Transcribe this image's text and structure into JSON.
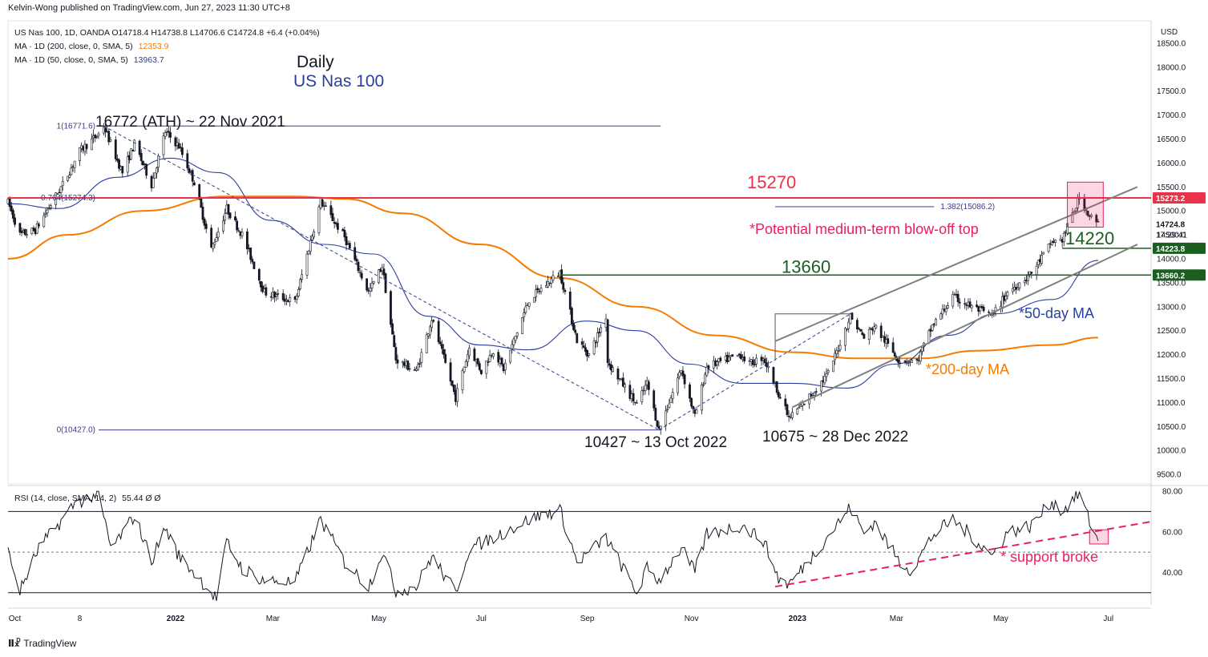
{
  "header": {
    "published": "Kelvin-Wong published on TradingView.com, Jun 27, 2023 11:30 UTC+8"
  },
  "legend": {
    "symbol": "US Nas 100, 1D, OANDA  O14718.4  H14738.8  L14706.6  C14724.8  +6.4 (+0.04%)",
    "ma200_label": "MA · 1D (200, close, 0, SMA, 5)",
    "ma200_value": "12353.9",
    "ma50_label": "MA · 1D (50, close, 0, SMA, 5)",
    "ma50_value": "13963.7",
    "rsi_label": "RSI (14, close, SMA, 14, 2)",
    "rsi_value": "55.44  Ø  Ø"
  },
  "footer": {
    "brand": "TradingView",
    "logo": "tradingview-logo-icon"
  },
  "colors": {
    "up": "#131722",
    "ma200": "#f57c00",
    "ma50": "#2a3f9d",
    "resistance": "#e8334a",
    "support": "#1b5e20",
    "annotation_red": "#e91e63",
    "fib": "#3b3b8f",
    "channel": "#808080"
  },
  "chart_data": [
    {
      "type": "candlestick",
      "title": "Daily",
      "subtitle": "US Nas 100",
      "price_axis_label": "USD",
      "ylim": [
        9300,
        18900
      ],
      "y_ticks": [
        9500,
        10000,
        10500,
        11000,
        11500,
        12000,
        12500,
        13000,
        13500,
        14000,
        14500,
        15000,
        15500,
        16000,
        16500,
        17000,
        17500,
        18000,
        18500
      ],
      "y_tick_labels": [
        "9500.0",
        "10000.0",
        "10500.0",
        "11000.0",
        "11500.0",
        "12000.0",
        "12500.0",
        "13000.0",
        "13500.0",
        "14000.0",
        "14500.0",
        "15000.0",
        "15500.0",
        "16000.0",
        "16500.0",
        "17000.0",
        "17500.0",
        "18000.0",
        "18500.0"
      ],
      "x_ticks": [
        {
          "date": "2021-10-01",
          "label": "Oct",
          "bold": false
        },
        {
          "date": "2021-11-08",
          "label": "8",
          "bold": false
        },
        {
          "date": "2022-01-03",
          "label": "2022",
          "bold": true
        },
        {
          "date": "2022-03-01",
          "label": "Mar",
          "bold": false
        },
        {
          "date": "2022-05-02",
          "label": "May",
          "bold": false
        },
        {
          "date": "2022-07-01",
          "label": "Jul",
          "bold": false
        },
        {
          "date": "2022-09-01",
          "label": "Sep",
          "bold": false
        },
        {
          "date": "2022-11-01",
          "label": "Nov",
          "bold": false
        },
        {
          "date": "2023-01-02",
          "label": "2023",
          "bold": true
        },
        {
          "date": "2023-03-01",
          "label": "Mar",
          "bold": false
        },
        {
          "date": "2023-05-01",
          "label": "May",
          "bold": false
        },
        {
          "date": "2023-07-03",
          "label": "Jul",
          "bold": false
        }
      ],
      "price_pivots": [
        [
          "2021-09-27",
          15180
        ],
        [
          "2021-10-04",
          14500
        ],
        [
          "2021-10-13",
          14600
        ],
        [
          "2021-10-29",
          15550
        ],
        [
          "2021-11-08",
          16250
        ],
        [
          "2021-11-19",
          16600
        ],
        [
          "2021-11-22",
          16772
        ],
        [
          "2021-11-30",
          16050
        ],
        [
          "2021-12-03",
          15800
        ],
        [
          "2021-12-10",
          16400
        ],
        [
          "2021-12-20",
          15550
        ],
        [
          "2021-12-28",
          16650
        ],
        [
          "2022-01-05",
          16350
        ],
        [
          "2022-01-14",
          15600
        ],
        [
          "2022-01-24",
          14200
        ],
        [
          "2022-02-02",
          15050
        ],
        [
          "2022-02-11",
          14500
        ],
        [
          "2022-02-24",
          13300
        ],
        [
          "2022-03-14",
          13100
        ],
        [
          "2022-03-29",
          15200
        ],
        [
          "2022-04-12",
          14450
        ],
        [
          "2022-04-26",
          13300
        ],
        [
          "2022-05-04",
          13850
        ],
        [
          "2022-05-12",
          11900
        ],
        [
          "2022-05-24",
          11650
        ],
        [
          "2022-06-02",
          12750
        ],
        [
          "2022-06-16",
          11100
        ],
        [
          "2022-06-24",
          12150
        ],
        [
          "2022-07-01",
          11650
        ],
        [
          "2022-07-08",
          12100
        ],
        [
          "2022-07-14",
          11700
        ],
        [
          "2022-07-29",
          13150
        ],
        [
          "2022-08-16",
          13720
        ],
        [
          "2022-08-26",
          12300
        ],
        [
          "2022-09-02",
          12000
        ],
        [
          "2022-09-12",
          12800
        ],
        [
          "2022-09-13",
          11850
        ],
        [
          "2022-09-30",
          10950
        ],
        [
          "2022-10-06",
          11400
        ],
        [
          "2022-10-13",
          10427
        ],
        [
          "2022-10-26",
          11700
        ],
        [
          "2022-11-03",
          10700
        ],
        [
          "2022-11-10",
          11750
        ],
        [
          "2022-11-30",
          12000
        ],
        [
          "2022-12-05",
          11800
        ],
        [
          "2022-12-13",
          11950
        ],
        [
          "2022-12-22",
          11200
        ],
        [
          "2022-12-28",
          10675
        ],
        [
          "2023-01-05",
          10950
        ],
        [
          "2023-01-20",
          11600
        ],
        [
          "2023-02-02",
          12800
        ],
        [
          "2023-02-10",
          12350
        ],
        [
          "2023-02-16",
          12600
        ],
        [
          "2023-03-02",
          11900
        ],
        [
          "2023-03-13",
          11850
        ],
        [
          "2023-03-22",
          12600
        ],
        [
          "2023-04-03",
          13200
        ],
        [
          "2023-04-14",
          13000
        ],
        [
          "2023-04-26",
          12800
        ],
        [
          "2023-05-05",
          13300
        ],
        [
          "2023-05-19",
          13700
        ],
        [
          "2023-05-31",
          14350
        ],
        [
          "2023-06-06",
          14400
        ],
        [
          "2023-06-16",
          15273
        ],
        [
          "2023-06-22",
          14900
        ],
        [
          "2023-06-27",
          14724.8
        ]
      ],
      "ma200_points": [
        [
          "2021-09-27",
          14000
        ],
        [
          "2021-11-01",
          14500
        ],
        [
          "2021-12-15",
          15000
        ],
        [
          "2022-01-31",
          15300
        ],
        [
          "2022-03-15",
          15300
        ],
        [
          "2022-04-12",
          15250
        ],
        [
          "2022-05-16",
          14950
        ],
        [
          "2022-06-30",
          14300
        ],
        [
          "2022-08-15",
          13600
        ],
        [
          "2022-09-30",
          13000
        ],
        [
          "2022-11-15",
          12400
        ],
        [
          "2022-12-30",
          12050
        ],
        [
          "2023-02-06",
          11920
        ],
        [
          "2023-03-15",
          11920
        ],
        [
          "2023-04-17",
          12080
        ],
        [
          "2023-05-31",
          12200
        ],
        [
          "2023-06-27",
          12353.9
        ]
      ],
      "ma50_points": [
        [
          "2021-09-27",
          15150
        ],
        [
          "2021-10-27",
          15050
        ],
        [
          "2021-11-30",
          15700
        ],
        [
          "2021-12-31",
          16100
        ],
        [
          "2022-01-28",
          15800
        ],
        [
          "2022-02-28",
          14800
        ],
        [
          "2022-03-31",
          14300
        ],
        [
          "2022-04-29",
          14100
        ],
        [
          "2022-05-31",
          12800
        ],
        [
          "2022-06-30",
          12200
        ],
        [
          "2022-07-29",
          12100
        ],
        [
          "2022-08-31",
          12700
        ],
        [
          "2022-09-30",
          12500
        ],
        [
          "2022-10-31",
          11800
        ],
        [
          "2022-11-30",
          11400
        ],
        [
          "2022-12-30",
          11400
        ],
        [
          "2023-01-31",
          11300
        ],
        [
          "2023-02-28",
          11800
        ],
        [
          "2023-03-31",
          12400
        ],
        [
          "2023-04-28",
          12850
        ],
        [
          "2023-05-31",
          13150
        ],
        [
          "2023-06-27",
          13963.7
        ]
      ],
      "levels": [
        {
          "name": "resistance",
          "value": 15270,
          "label": "15270",
          "axis_tag": "15273.2"
        },
        {
          "name": "support-upper",
          "value": 14220,
          "label": "14220",
          "axis_tag": "14223.8"
        },
        {
          "name": "support-lower",
          "value": 13660,
          "label": "13660",
          "axis_tag": "13660.2"
        }
      ],
      "current_price_tag": {
        "value": 14724.8,
        "label": "14724.8",
        "countdown": "17:29:41"
      },
      "fibonacci": [
        {
          "label": "1(16771.6)",
          "value": 16771.6
        },
        {
          "label": "0.764(15274.3)",
          "value": 15274.3
        },
        {
          "label": "0(10427.0)",
          "value": 10427.0
        },
        {
          "label": "1.382(15086.2)",
          "value": 15086.2
        }
      ],
      "fib_projection_x": [
        "2022-12-20",
        "2023-03-23"
      ],
      "fib_diagonal": [
        [
          "2021-11-22",
          16772
        ],
        [
          "2022-10-13",
          10427
        ]
      ],
      "fib_extension_dash": [
        [
          "2022-10-13",
          10427
        ],
        [
          "2023-02-02",
          12850
        ]
      ],
      "fib_extension_bracket": [
        [
          "2022-12-20",
          11870
        ],
        [
          "2023-02-02",
          12850
        ]
      ],
      "channel": [
        [
          [
            "2022-12-20",
            12280
          ],
          [
            "2023-07-20",
            15500
          ]
        ],
        [
          [
            "2022-12-30",
            10900
          ],
          [
            "2023-07-20",
            14300
          ]
        ]
      ],
      "highlight_box": {
        "x": [
          "2023-06-09",
          "2023-06-30"
        ],
        "y": [
          14660,
          15600
        ]
      },
      "annotations": [
        {
          "text": "16772 (ATH) ~ 22 Nov 2021",
          "date": "2021-11-22",
          "value": 16772
        },
        {
          "text": "10427 ~ 13 Oct 2022",
          "date": "2022-10-13",
          "value": 10427
        },
        {
          "text": "10675 ~ 28 Dec 2022",
          "date": "2022-12-28",
          "value": 10675
        },
        {
          "text": "*Potential medium-term blow-off top",
          "date": "2023-06-16",
          "value": 15273
        },
        {
          "text": "*50-day MA",
          "date": "2023-06-27",
          "value": 13963.7
        },
        {
          "text": "*200-day MA",
          "date": "2023-06-27",
          "value": 12353.9
        }
      ]
    },
    {
      "type": "line",
      "title": "RSI (14, close, SMA, 14, 2)",
      "ylim": [
        24,
        82
      ],
      "y_ticks": [
        40,
        60,
        80
      ],
      "y_tick_labels": [
        "40.00",
        "60.00",
        "80.00"
      ],
      "bands": [
        70,
        50,
        30
      ],
      "rsi_points": [
        [
          "2021-09-27",
          50
        ],
        [
          "2021-10-04",
          31
        ],
        [
          "2021-10-15",
          52
        ],
        [
          "2021-10-25",
          62
        ],
        [
          "2021-11-05",
          74
        ],
        [
          "2021-11-19",
          79
        ],
        [
          "2021-11-26",
          52
        ],
        [
          "2021-12-02",
          58
        ],
        [
          "2021-12-10",
          68
        ],
        [
          "2021-12-20",
          46
        ],
        [
          "2021-12-28",
          62
        ],
        [
          "2022-01-05",
          48
        ],
        [
          "2022-01-14",
          40
        ],
        [
          "2022-01-27",
          27
        ],
        [
          "2022-02-02",
          55
        ],
        [
          "2022-02-11",
          42
        ],
        [
          "2022-02-24",
          36
        ],
        [
          "2022-03-14",
          35
        ],
        [
          "2022-03-29",
          66
        ],
        [
          "2022-04-12",
          45
        ],
        [
          "2022-04-26",
          33
        ],
        [
          "2022-05-04",
          50
        ],
        [
          "2022-05-12",
          31
        ],
        [
          "2022-05-24",
          33
        ],
        [
          "2022-06-02",
          48
        ],
        [
          "2022-06-16",
          30
        ],
        [
          "2022-06-24",
          52
        ],
        [
          "2022-07-08",
          57
        ],
        [
          "2022-07-29",
          66
        ],
        [
          "2022-08-16",
          71
        ],
        [
          "2022-08-26",
          45
        ],
        [
          "2022-09-12",
          57
        ],
        [
          "2022-09-30",
          30
        ],
        [
          "2022-10-06",
          42
        ],
        [
          "2022-10-13",
          36
        ],
        [
          "2022-10-26",
          52
        ],
        [
          "2022-11-03",
          40
        ],
        [
          "2022-11-10",
          59
        ],
        [
          "2022-11-30",
          63
        ],
        [
          "2022-12-13",
          56
        ],
        [
          "2022-12-22",
          37
        ],
        [
          "2022-12-28",
          34
        ],
        [
          "2023-01-05",
          42
        ],
        [
          "2023-01-20",
          58
        ],
        [
          "2023-02-02",
          72
        ],
        [
          "2023-02-10",
          59
        ],
        [
          "2023-02-16",
          65
        ],
        [
          "2023-03-02",
          46
        ],
        [
          "2023-03-10",
          41
        ],
        [
          "2023-03-22",
          58
        ],
        [
          "2023-04-03",
          66
        ],
        [
          "2023-04-14",
          58
        ],
        [
          "2023-04-26",
          48
        ],
        [
          "2023-05-05",
          60
        ],
        [
          "2023-05-19",
          63
        ],
        [
          "2023-05-31",
          75
        ],
        [
          "2023-06-06",
          70
        ],
        [
          "2023-06-16",
          79
        ],
        [
          "2023-06-22",
          65
        ],
        [
          "2023-06-27",
          55.44
        ]
      ],
      "support_trendline": [
        [
          "2022-12-20",
          33
        ],
        [
          "2023-07-28",
          65
        ]
      ],
      "rsi_box": {
        "x": [
          "2023-06-22",
          "2023-07-03"
        ],
        "y": [
          54,
          61
        ]
      },
      "annotation": "* support broke"
    }
  ]
}
